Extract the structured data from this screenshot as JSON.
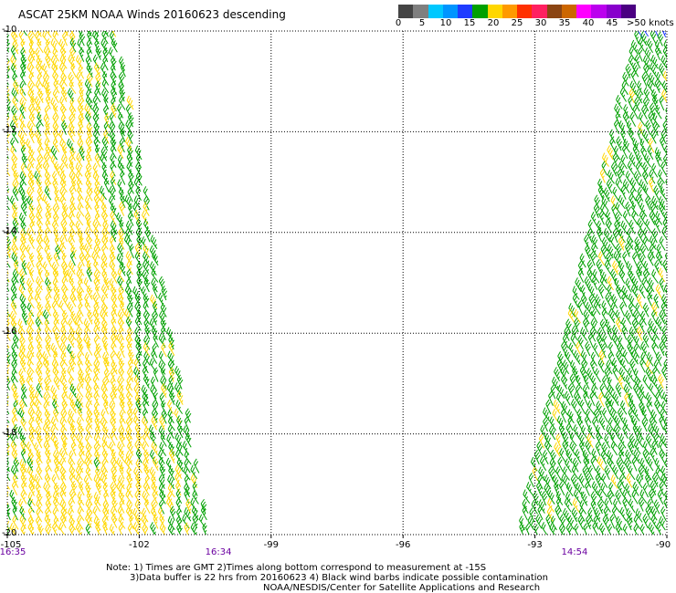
{
  "title": "ASCAT 25KM NOAA Winds 20160623 descending",
  "colorbar": {
    "colors": [
      "#444444",
      "#7f7f7f",
      "#00c8ff",
      "#0095ff",
      "#1f3cff",
      "#00a000",
      "#ffd700",
      "#ff9a00",
      "#ff3000",
      "#ff2060",
      "#8b4513",
      "#cc6600",
      "#ff00ff",
      "#bb00ee",
      "#8800cc",
      "#4b0082"
    ],
    "labels": [
      "0",
      "5",
      "10",
      "15",
      "20",
      "25",
      "30",
      "35",
      "40",
      "45",
      ">50 knots"
    ],
    "label_values": [
      0,
      5,
      10,
      15,
      20,
      25,
      30,
      35,
      40,
      45,
      50
    ]
  },
  "axes": {
    "lon_ticks": [
      -105,
      -102,
      -99,
      -96,
      -93,
      -90
    ],
    "lon_labels": [
      "-105",
      "-102",
      "-99",
      "-96",
      "-93",
      "-90"
    ],
    "lat_ticks": [
      -10,
      -12,
      -14,
      -16,
      -18,
      -20
    ],
    "lat_labels": [
      "-10",
      "-12",
      "-14",
      "-16",
      "-18",
      "-20"
    ],
    "lon_range": [
      -105,
      -90
    ],
    "lat_range": [
      -20,
      -10
    ]
  },
  "times": [
    {
      "lon": -105,
      "label": "16:35"
    },
    {
      "lon": -100.2,
      "label": "16:34"
    },
    {
      "lon": -92.1,
      "label": "14:54"
    }
  ],
  "notes": {
    "line1": "Note: 1) Times are GMT 2)Times along bottom correspond to measurement at -15S",
    "line2": "3)Data buffer is 22 hrs from 20160623 4) Black wind barbs indicate possible contamination",
    "line3": "NOAA/NESDIS/Center for Satellite Applications and Research"
  },
  "swaths": [
    {
      "name": "west-swath",
      "lat_top": -10,
      "lat_bottom": -20,
      "top_lon": [
        -105,
        -102.6
      ],
      "bottom_lon": [
        -105,
        -100.5
      ],
      "dominant_speed": "20-25 knots",
      "edge_speed": "15-20 knots"
    },
    {
      "name": "east-swath",
      "lat_top": -10,
      "lat_bottom": -20,
      "top_lon": [
        -90.6,
        -90
      ],
      "bottom_lon": [
        -93.3,
        -90
      ],
      "dominant_speed": "15-20 knots",
      "edge_speed": "20-25 knots"
    }
  ]
}
